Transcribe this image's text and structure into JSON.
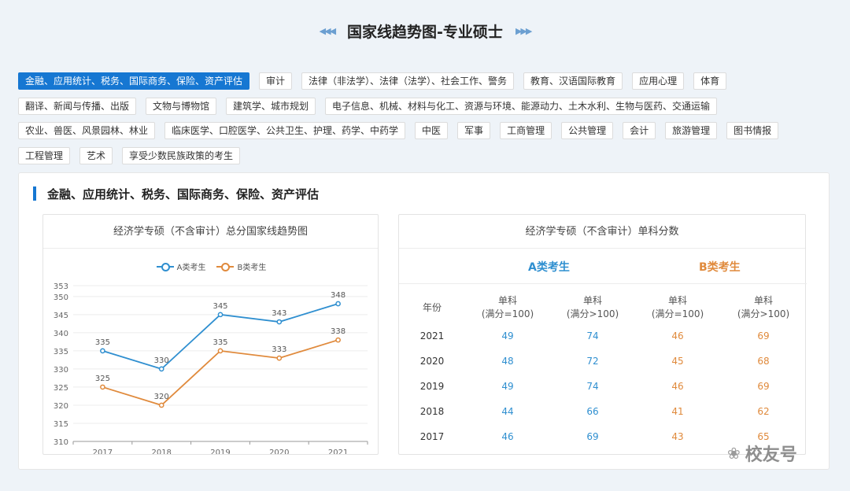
{
  "header": {
    "title": "国家线趋势图-专业硕士"
  },
  "tags": {
    "rows": [
      [
        "金融、应用统计、税务、国际商务、保险、资产评估",
        "审计",
        "法律（非法学）、法律（法学）、社会工作、警务",
        "教育、汉语国际教育",
        "应用心理",
        "体育"
      ],
      [
        "翻译、新闻与传播、出版",
        "文物与博物馆",
        "建筑学、城市规划",
        "电子信息、机械、材料与化工、资源与环境、能源动力、土木水利、生物与医药、交通运输"
      ],
      [
        "农业、兽医、风景园林、林业",
        "临床医学、口腔医学、公共卫生、护理、药学、中药学",
        "中医",
        "军事",
        "工商管理",
        "公共管理",
        "会计",
        "旅游管理",
        "图书情报"
      ],
      [
        "工程管理",
        "艺术",
        "享受少数民族政策的考生"
      ]
    ],
    "active": "金融、应用统计、税务、国际商务、保险、资产评估"
  },
  "panel": {
    "title": "金融、应用统计、税务、国际商务、保险、资产评估"
  },
  "chart_card": {
    "title": "经济学专硕（不含审计）总分国家线趋势图"
  },
  "chart_data": {
    "type": "line",
    "x": [
      "2017",
      "2018",
      "2019",
      "2020",
      "2021"
    ],
    "series": [
      {
        "name": "A类考生",
        "values": [
          335,
          330,
          345,
          343,
          348
        ],
        "color": "#2f8fd0"
      },
      {
        "name": "B类考生",
        "values": [
          325,
          320,
          335,
          333,
          338
        ],
        "color": "#e08a3c"
      }
    ],
    "yticks": [
      310,
      315,
      320,
      325,
      330,
      335,
      340,
      345,
      350,
      353
    ],
    "ylim": [
      310,
      353
    ],
    "grid": true,
    "legend": "top-center"
  },
  "score_card": {
    "title": "经济学专硕（不含审计）单科分数",
    "group_a": "A类考生",
    "group_b": "B类考生",
    "col_year": "年份",
    "col_sub1": "单科",
    "col_sub1_note": "(满分=100)",
    "col_sub2": "单科",
    "col_sub2_note": "(满分>100)",
    "rows": [
      {
        "year": "2021",
        "a1": "49",
        "a2": "74",
        "b1": "46",
        "b2": "69"
      },
      {
        "year": "2020",
        "a1": "48",
        "a2": "72",
        "b1": "45",
        "b2": "68"
      },
      {
        "year": "2019",
        "a1": "49",
        "a2": "74",
        "b1": "46",
        "b2": "69"
      },
      {
        "year": "2018",
        "a1": "44",
        "a2": "66",
        "b1": "41",
        "b2": "62"
      },
      {
        "year": "2017",
        "a1": "46",
        "a2": "69",
        "b1": "43",
        "b2": "65"
      }
    ]
  },
  "watermark": {
    "text": "校友号",
    "icon": "wechat-icon"
  }
}
